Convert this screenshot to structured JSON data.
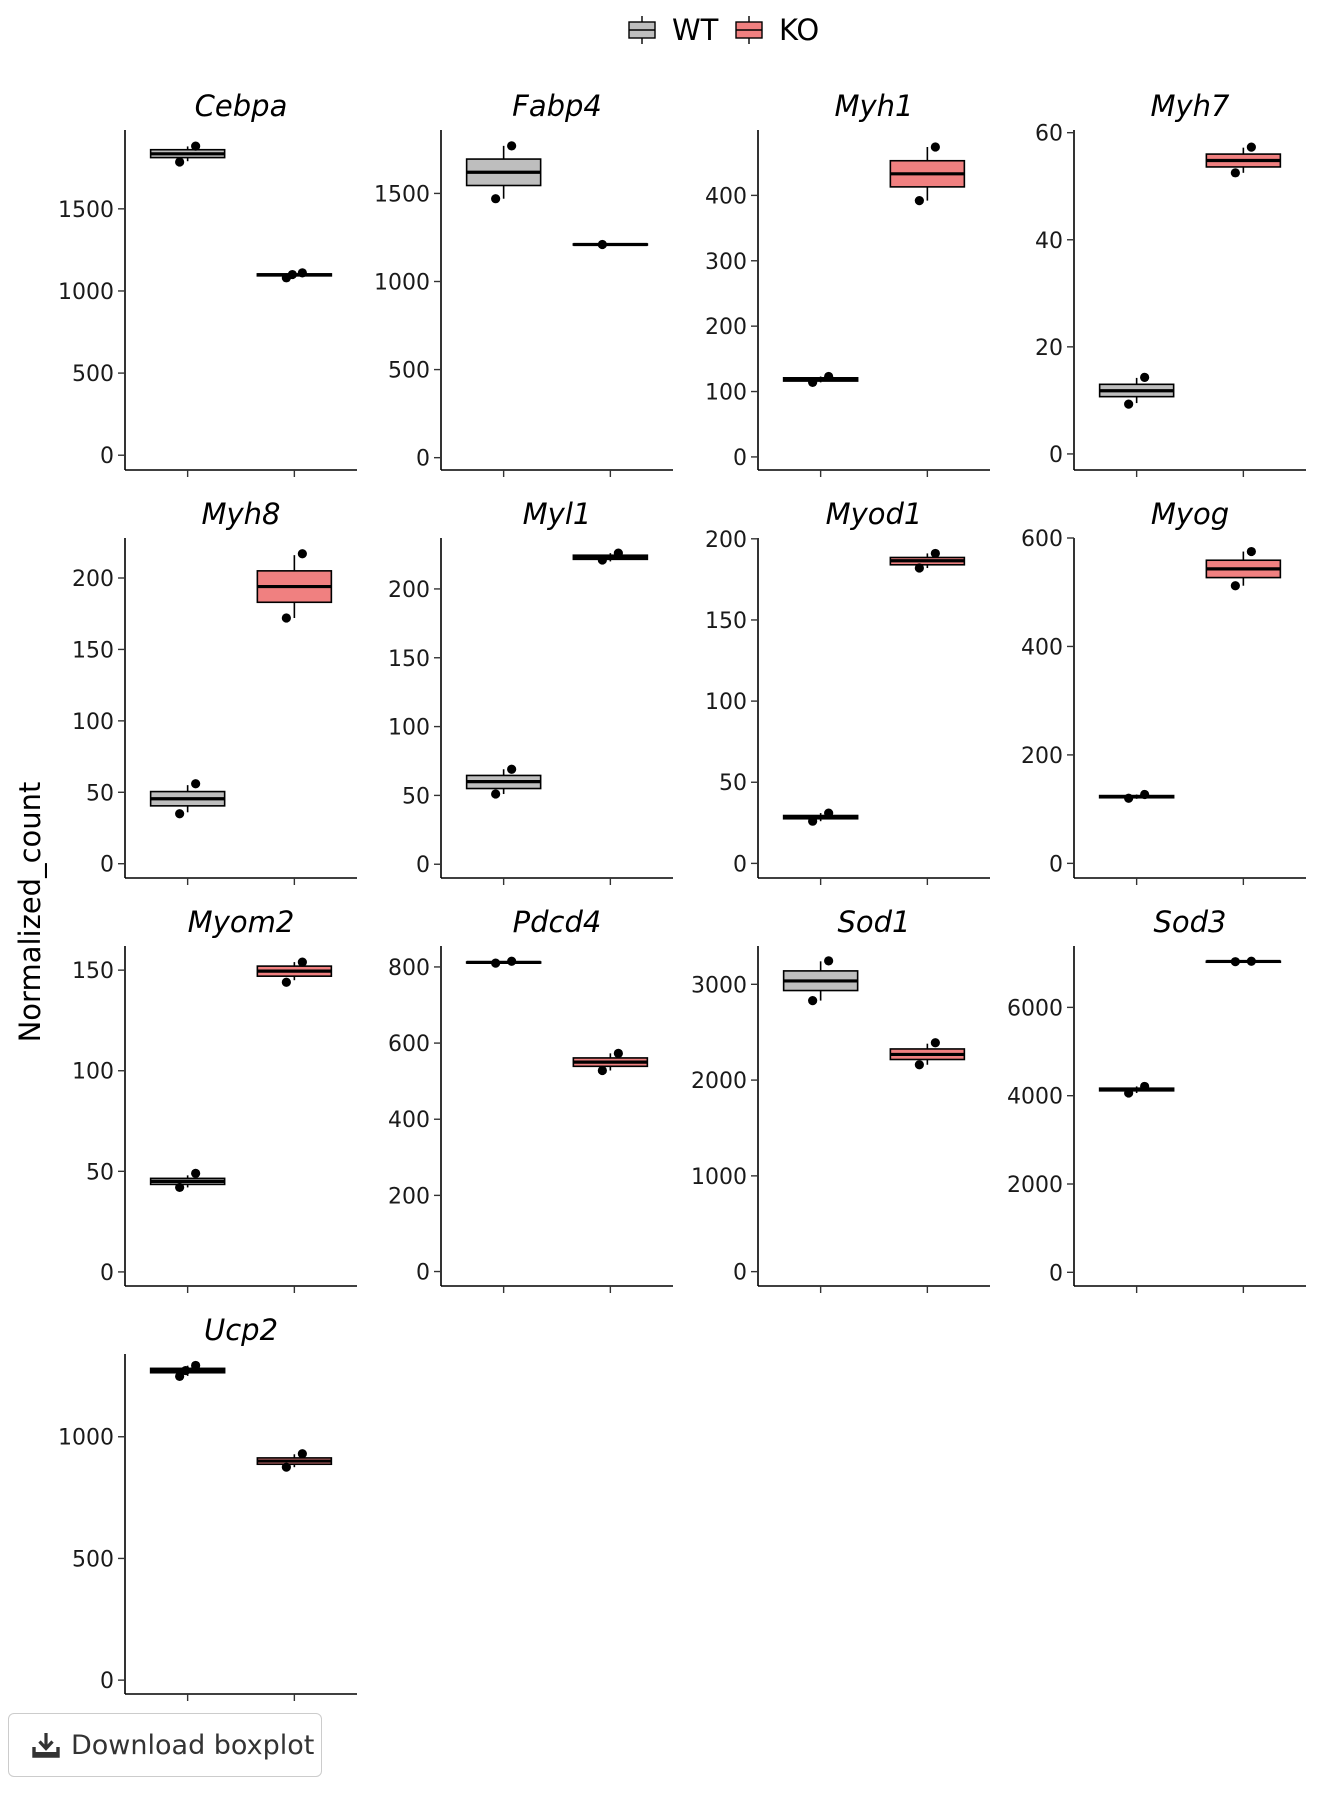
{
  "chart_data": {
    "type": "boxplot",
    "ylabel": "Normalized_count",
    "legend": {
      "position": "top",
      "entries": [
        {
          "name": "WT",
          "color": "#bebebe"
        },
        {
          "name": "KO",
          "color": "#f08080"
        }
      ]
    },
    "grid": false,
    "panels": [
      {
        "title": "Cebpa",
        "yticks": [
          0,
          500,
          1000,
          1500
        ],
        "ylim": [
          -90,
          1980
        ],
        "groups": [
          {
            "group": "WT",
            "min": 1790,
            "q1": 1812,
            "median": 1835,
            "q3": 1860,
            "max": 1880,
            "points": [
              1785,
              1882
            ]
          },
          {
            "group": "KO",
            "min": 1085,
            "q1": 1092,
            "median": 1098,
            "q3": 1104,
            "max": 1112,
            "points": [
              1080,
              1110,
              1100
            ]
          }
        ]
      },
      {
        "title": "Fabp4",
        "yticks": [
          0,
          500,
          1000,
          1500
        ],
        "ylim": [
          -70,
          1860
        ],
        "groups": [
          {
            "group": "WT",
            "min": 1470,
            "q1": 1545,
            "median": 1620,
            "q3": 1695,
            "max": 1770,
            "points": [
              1470,
              1770
            ]
          },
          {
            "group": "KO",
            "min": 1205,
            "q1": 1207,
            "median": 1210,
            "q3": 1213,
            "max": 1215,
            "points": [
              1210
            ]
          }
        ]
      },
      {
        "title": "Myh1",
        "yticks": [
          0,
          100,
          200,
          300,
          400
        ],
        "ylim": [
          -20,
          500
        ],
        "groups": [
          {
            "group": "WT",
            "min": 114,
            "q1": 116,
            "median": 119,
            "q3": 121,
            "max": 123,
            "points": [
              114,
              123
            ]
          },
          {
            "group": "KO",
            "min": 392,
            "q1": 413,
            "median": 433,
            "q3": 453,
            "max": 474,
            "points": [
              392,
              474
            ]
          }
        ]
      },
      {
        "title": "Myh7",
        "yticks": [
          0,
          20,
          40,
          60
        ],
        "ylim": [
          -3,
          60.5
        ],
        "groups": [
          {
            "group": "WT",
            "min": 9.5,
            "q1": 10.7,
            "median": 11.8,
            "q3": 13.0,
            "max": 14.2,
            "points": [
              9.3,
              14.3
            ]
          },
          {
            "group": "KO",
            "min": 52.5,
            "q1": 53.6,
            "median": 54.8,
            "q3": 56.0,
            "max": 57.2,
            "points": [
              52.5,
              57.3
            ]
          }
        ]
      },
      {
        "title": "Myh8",
        "yticks": [
          0,
          50,
          100,
          150,
          200
        ],
        "ylim": [
          -10,
          228
        ],
        "groups": [
          {
            "group": "WT",
            "min": 36,
            "q1": 40.5,
            "median": 45.5,
            "q3": 50.5,
            "max": 55,
            "points": [
              35,
              56
            ]
          },
          {
            "group": "KO",
            "min": 172,
            "q1": 183,
            "median": 194,
            "q3": 205,
            "max": 216,
            "points": [
              172,
              217
            ]
          }
        ]
      },
      {
        "title": "Myl1",
        "yticks": [
          0,
          50,
          100,
          150,
          200
        ],
        "ylim": [
          -10,
          237
        ],
        "groups": [
          {
            "group": "WT",
            "min": 51,
            "q1": 55,
            "median": 60,
            "q3": 64.5,
            "max": 69,
            "points": [
              51,
              69
            ]
          },
          {
            "group": "KO",
            "min": 220,
            "q1": 221.5,
            "median": 223,
            "q3": 224.5,
            "max": 226,
            "points": [
              221,
              226
            ]
          }
        ]
      },
      {
        "title": "Myod1",
        "yticks": [
          0,
          50,
          100,
          150,
          200
        ],
        "ylim": [
          -9,
          200.5
        ],
        "groups": [
          {
            "group": "WT",
            "min": 26,
            "q1": 27.5,
            "median": 28.5,
            "q3": 29.5,
            "max": 31,
            "points": [
              26,
              31
            ]
          },
          {
            "group": "KO",
            "min": 182,
            "q1": 184,
            "median": 186.5,
            "q3": 188.5,
            "max": 191,
            "points": [
              182,
              191
            ]
          }
        ]
      },
      {
        "title": "Myog",
        "yticks": [
          0,
          200,
          400,
          600
        ],
        "ylim": [
          -27,
          600
        ],
        "groups": [
          {
            "group": "WT",
            "min": 119,
            "q1": 121,
            "median": 123,
            "q3": 125,
            "max": 127,
            "points": [
              120,
              127
            ]
          },
          {
            "group": "KO",
            "min": 512,
            "q1": 527,
            "median": 543,
            "q3": 559,
            "max": 575,
            "points": [
              512,
              575
            ]
          }
        ]
      },
      {
        "title": "Myom2",
        "yticks": [
          0,
          50,
          100,
          150
        ],
        "ylim": [
          -7,
          162
        ],
        "groups": [
          {
            "group": "WT",
            "min": 42,
            "q1": 43.5,
            "median": 45,
            "q3": 46.5,
            "max": 48,
            "points": [
              42,
              49
            ]
          },
          {
            "group": "KO",
            "min": 145,
            "q1": 147,
            "median": 149.5,
            "q3": 152,
            "max": 154,
            "points": [
              144,
              154
            ]
          }
        ]
      },
      {
        "title": "Pdcd4",
        "yticks": [
          0,
          200,
          400,
          600,
          800
        ],
        "ylim": [
          -38,
          855
        ],
        "groups": [
          {
            "group": "WT",
            "min": 810,
            "q1": 811,
            "median": 812,
            "q3": 813,
            "max": 815,
            "points": [
              810,
              815
            ]
          },
          {
            "group": "KO",
            "min": 528,
            "q1": 539,
            "median": 550,
            "q3": 561,
            "max": 573,
            "points": [
              528,
              573
            ]
          }
        ]
      },
      {
        "title": "Sod1",
        "yticks": [
          0,
          1000,
          2000,
          3000
        ],
        "ylim": [
          -150,
          3400
        ],
        "groups": [
          {
            "group": "WT",
            "min": 2830,
            "q1": 2935,
            "median": 3035,
            "q3": 3140,
            "max": 3240,
            "points": [
              2830,
              3245
            ]
          },
          {
            "group": "KO",
            "min": 2160,
            "q1": 2215,
            "median": 2268,
            "q3": 2325,
            "max": 2380,
            "points": [
              2160,
              2390
            ]
          }
        ]
      },
      {
        "title": "Sod3",
        "yticks": [
          0,
          2000,
          4000,
          6000
        ],
        "ylim": [
          -310,
          7390
        ],
        "groups": [
          {
            "group": "WT",
            "min": 4060,
            "q1": 4110,
            "median": 4140,
            "q3": 4170,
            "max": 4210,
            "points": [
              4060,
              4210
            ]
          },
          {
            "group": "KO",
            "min": 7030,
            "q1": 7035,
            "median": 7040,
            "q3": 7045,
            "max": 7050,
            "points": [
              7035,
              7045
            ]
          }
        ]
      },
      {
        "title": "Ucp2",
        "yticks": [
          0,
          500,
          1000
        ],
        "ylim": [
          -57,
          1340
        ],
        "groups": [
          {
            "group": "WT",
            "min": 1250,
            "q1": 1263,
            "median": 1272,
            "q3": 1281,
            "max": 1292,
            "points": [
              1248,
              1293,
              1272
            ]
          },
          {
            "group": "KO",
            "min": 875,
            "q1": 887,
            "median": 900,
            "q3": 913,
            "max": 928,
            "points": [
              875,
              930
            ]
          }
        ]
      }
    ]
  },
  "download_button": {
    "label": "Download boxplot",
    "icon": "download-icon"
  }
}
